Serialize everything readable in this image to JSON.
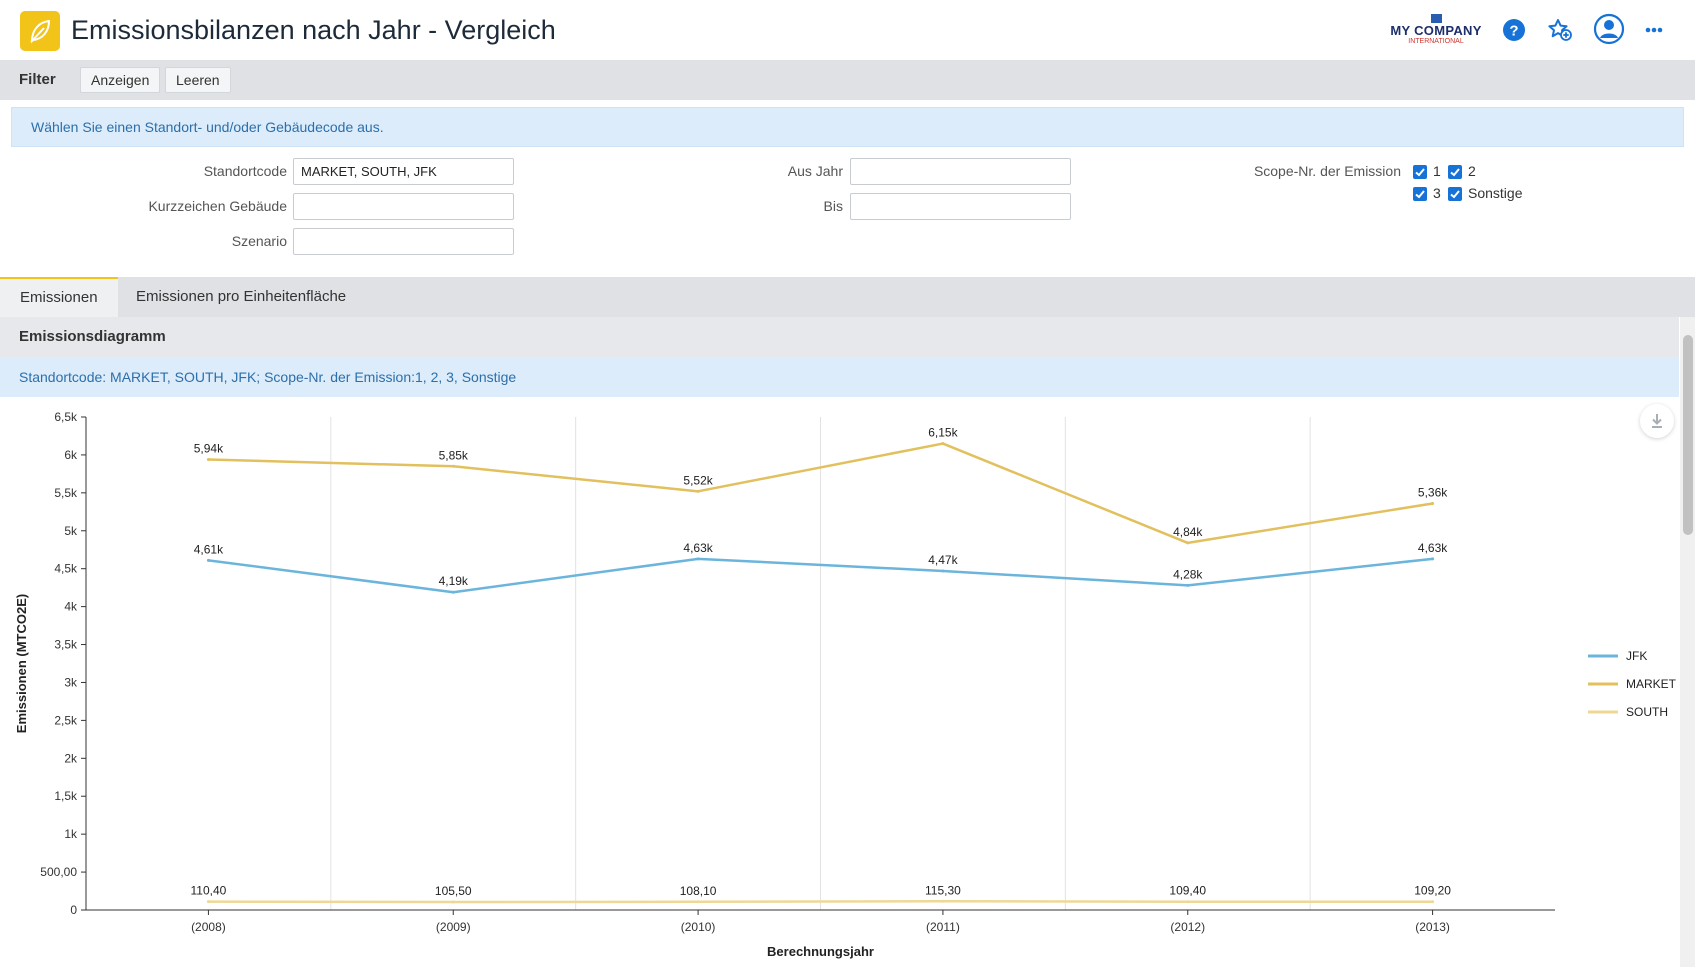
{
  "header": {
    "title": "Emissionsbilanzen nach Jahr - Vergleich",
    "company": {
      "name": "MY COMPANY",
      "sub": "INTERNATIONAL"
    },
    "icons": [
      "leaf-icon",
      "help-icon",
      "favorite-add-icon",
      "user-icon",
      "more-icon"
    ]
  },
  "filter_bar": {
    "title": "Filter",
    "show_label": "Anzeigen",
    "clear_label": "Leeren"
  },
  "info": {
    "message": "Wählen Sie einen Standort- und/oder Gebäudecode aus."
  },
  "form": {
    "site_code": {
      "label": "Standortcode",
      "value": "MARKET, SOUTH, JFK"
    },
    "building_code": {
      "label": "Kurzzeichen Gebäude",
      "value": ""
    },
    "scenario": {
      "label": "Szenario",
      "value": ""
    },
    "from_year": {
      "label": "Aus Jahr",
      "value": ""
    },
    "to_year": {
      "label": "Bis",
      "value": ""
    },
    "scope": {
      "label": "Scope-Nr. der Emission",
      "options": [
        {
          "label": "1",
          "checked": true
        },
        {
          "label": "2",
          "checked": true
        },
        {
          "label": "3",
          "checked": true
        },
        {
          "label": "Sonstige",
          "checked": true
        }
      ]
    }
  },
  "tabs": [
    {
      "label": "Emissionen",
      "active": true
    },
    {
      "label": "Emissionen pro Einheitenfläche",
      "active": false
    }
  ],
  "panel": {
    "title": "Emissionsdiagramm",
    "subtitle": "Standortcode: MARKET, SOUTH, JFK; Scope-Nr. der Emission:1, 2, 3, Sonstige"
  },
  "chart_data": {
    "type": "line",
    "xlabel": "Berechnungsjahr",
    "ylabel": "Emissionen (MTCO2E)",
    "categories": [
      "(2008)",
      "(2009)",
      "(2010)",
      "(2011)",
      "(2012)",
      "(2013)"
    ],
    "ylim": [
      0,
      6500
    ],
    "yticks": [
      0,
      500,
      1000,
      1500,
      2000,
      2500,
      3000,
      3500,
      4000,
      4500,
      5000,
      5500,
      6000,
      6500
    ],
    "ytick_labels": [
      "0",
      "500,00",
      "1k",
      "1,5k",
      "2k",
      "2,5k",
      "3k",
      "3,5k",
      "4k",
      "4,5k",
      "5k",
      "5,5k",
      "6k",
      "6,5k"
    ],
    "grid": "vertical",
    "legend": "right",
    "series": [
      {
        "name": "JFK",
        "color": "#6bb5dc",
        "values": [
          4610,
          4190,
          4630,
          4470,
          4280,
          4630
        ],
        "labels": [
          "4,61k",
          "4,19k",
          "4,63k",
          "4,47k",
          "4,28k",
          "4,63k"
        ]
      },
      {
        "name": "MARKET",
        "color": "#e2c05e",
        "values": [
          5940,
          5850,
          5520,
          6150,
          4840,
          5360
        ],
        "labels": [
          "5,94k",
          "5,85k",
          "5,52k",
          "6,15k",
          "4,84k",
          "5,36k"
        ]
      },
      {
        "name": "SOUTH",
        "color": "#efd896",
        "values": [
          110.4,
          105.5,
          108.1,
          115.3,
          109.4,
          109.2
        ],
        "labels": [
          "110,40",
          "105,50",
          "108,10",
          "115,30",
          "109,40",
          "109,20"
        ]
      }
    ]
  }
}
